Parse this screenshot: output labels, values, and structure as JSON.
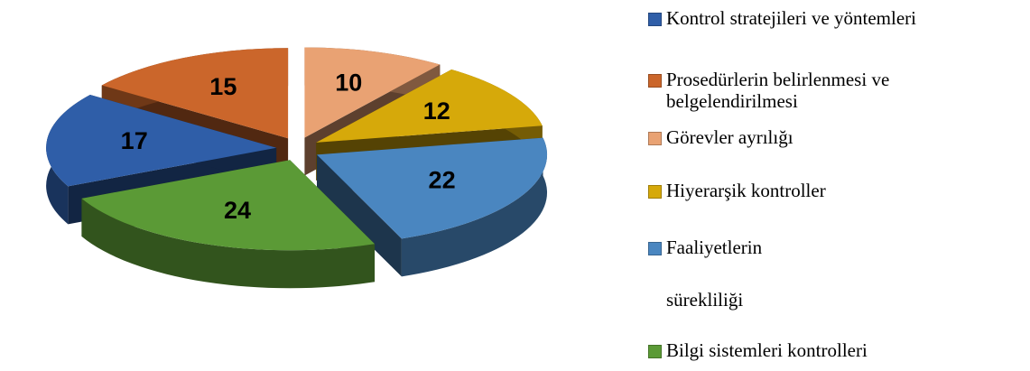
{
  "chart_data": {
    "type": "pie3d",
    "categories": [
      "Kontrol stratejileri ve yöntemleri",
      "Prosedürlerin belirlenmesi ve belgelendirilmesi",
      "Görevler ayrılığı",
      "Hiyerarşik kontroller",
      "Faaliyetlerin sürekliliği",
      "Bilgi sistemleri kontrolleri"
    ],
    "values": [
      17,
      15,
      10,
      12,
      22,
      24
    ],
    "colors": [
      "#2f5ea8",
      "#cb662b",
      "#e9a273",
      "#d6a90a",
      "#4a86c0",
      "#5b9a36"
    ],
    "legend": "right"
  }
}
